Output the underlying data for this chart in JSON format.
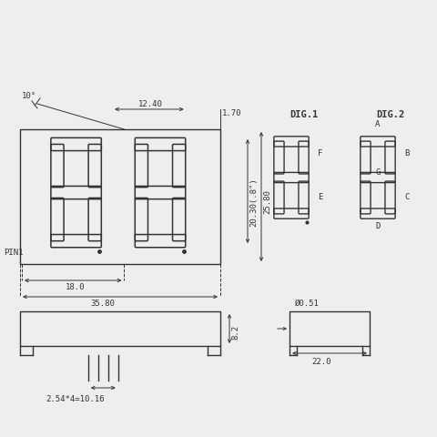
{
  "bg_color": "#eeeeee",
  "line_color": "#333333",
  "lw": 1.0,
  "thin_lw": 0.7,
  "fig_w": 4.8,
  "fig_h": 4.8,
  "dpi": 100,
  "annotations": {
    "dim_10": "10°",
    "dim_1240": "12.40",
    "dim_170": "1.70",
    "dim_2030": "20.30(.8\")",
    "dim_2580": "25.80",
    "dim_180": "18.0",
    "dim_3580": "35.80",
    "dim_82": "8.2",
    "dim_pitch": "2.54*4=10.16",
    "dim_dia": "Ø0.51",
    "dim_220": "22.0",
    "pin1": "PIN1",
    "dig1": "DIG.1",
    "dig2": "DIG.2",
    "seg_a": "A",
    "seg_b": "B",
    "seg_c": "C",
    "seg_d": "D",
    "seg_e": "E",
    "seg_f": "F",
    "seg_g": "G"
  }
}
